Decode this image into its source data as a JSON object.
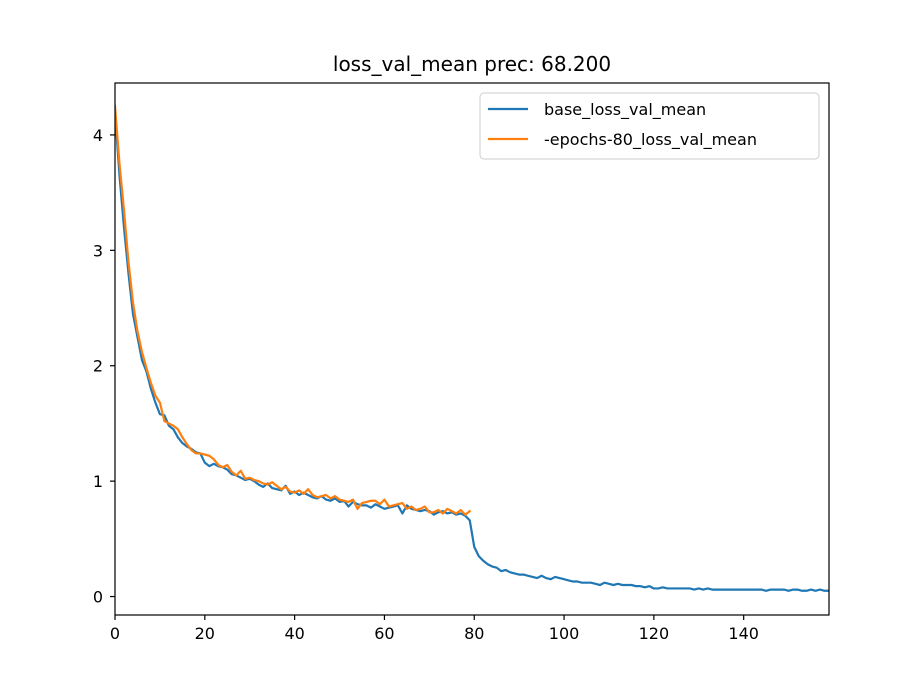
{
  "chart_data": {
    "type": "line",
    "title": "loss_val_mean prec: 68.200",
    "xlabel": "",
    "ylabel": "",
    "xlim": [
      0,
      159
    ],
    "ylim": [
      -0.16,
      4.45
    ],
    "x_ticks": [
      0,
      20,
      40,
      60,
      80,
      100,
      120,
      140
    ],
    "y_ticks": [
      0,
      1,
      2,
      3,
      4
    ],
    "grid": false,
    "legend_position": "top-right",
    "series": [
      {
        "name": "base_loss_val_mean",
        "color": "#1f77b4",
        "x": [
          0,
          1,
          2,
          3,
          4,
          5,
          6,
          7,
          8,
          9,
          10,
          11,
          12,
          13,
          14,
          15,
          16,
          17,
          18,
          19,
          20,
          21,
          22,
          23,
          24,
          25,
          26,
          27,
          28,
          29,
          30,
          31,
          32,
          33,
          34,
          35,
          36,
          37,
          38,
          39,
          40,
          41,
          42,
          43,
          44,
          45,
          46,
          47,
          48,
          49,
          50,
          51,
          52,
          53,
          54,
          55,
          56,
          57,
          58,
          59,
          60,
          61,
          62,
          63,
          64,
          65,
          66,
          67,
          68,
          69,
          70,
          71,
          72,
          73,
          74,
          75,
          76,
          77,
          78,
          79,
          80,
          81,
          82,
          83,
          84,
          85,
          86,
          87,
          88,
          89,
          90,
          91,
          92,
          93,
          94,
          95,
          96,
          97,
          98,
          99,
          100,
          101,
          102,
          103,
          104,
          105,
          106,
          107,
          108,
          109,
          110,
          111,
          112,
          113,
          114,
          115,
          116,
          117,
          118,
          119,
          120,
          121,
          122,
          123,
          124,
          125,
          126,
          127,
          128,
          129,
          130,
          131,
          132,
          133,
          134,
          135,
          136,
          137,
          138,
          139,
          140,
          141,
          142,
          143,
          144,
          145,
          146,
          147,
          148,
          149,
          150,
          151,
          152,
          153,
          154,
          155,
          156,
          157,
          158,
          159
        ],
        "y": [
          4.2,
          3.65,
          3.2,
          2.8,
          2.45,
          2.25,
          2.05,
          1.95,
          1.8,
          1.68,
          1.58,
          1.57,
          1.48,
          1.45,
          1.38,
          1.33,
          1.3,
          1.28,
          1.25,
          1.24,
          1.16,
          1.13,
          1.15,
          1.13,
          1.12,
          1.1,
          1.06,
          1.05,
          1.03,
          1.01,
          1.02,
          1.0,
          0.97,
          0.95,
          0.98,
          0.94,
          0.93,
          0.92,
          0.96,
          0.89,
          0.91,
          0.88,
          0.9,
          0.88,
          0.86,
          0.85,
          0.87,
          0.84,
          0.83,
          0.85,
          0.82,
          0.83,
          0.78,
          0.82,
          0.8,
          0.79,
          0.79,
          0.77,
          0.8,
          0.78,
          0.76,
          0.77,
          0.78,
          0.79,
          0.72,
          0.79,
          0.76,
          0.75,
          0.74,
          0.75,
          0.74,
          0.71,
          0.73,
          0.74,
          0.72,
          0.73,
          0.71,
          0.72,
          0.7,
          0.66,
          0.43,
          0.35,
          0.31,
          0.28,
          0.26,
          0.25,
          0.22,
          0.23,
          0.21,
          0.2,
          0.19,
          0.19,
          0.18,
          0.17,
          0.16,
          0.18,
          0.16,
          0.15,
          0.17,
          0.16,
          0.15,
          0.14,
          0.13,
          0.13,
          0.12,
          0.12,
          0.12,
          0.11,
          0.1,
          0.12,
          0.11,
          0.1,
          0.11,
          0.1,
          0.1,
          0.1,
          0.09,
          0.09,
          0.08,
          0.09,
          0.07,
          0.07,
          0.08,
          0.07,
          0.07,
          0.07,
          0.07,
          0.07,
          0.07,
          0.06,
          0.07,
          0.06,
          0.07,
          0.06,
          0.06,
          0.06,
          0.06,
          0.06,
          0.06,
          0.06,
          0.06,
          0.06,
          0.06,
          0.06,
          0.06,
          0.05,
          0.06,
          0.06,
          0.06,
          0.06,
          0.05,
          0.06,
          0.06,
          0.05,
          0.05,
          0.06,
          0.05,
          0.06,
          0.05,
          0.05
        ]
      },
      {
        "name": "-epochs-80_loss_val_mean",
        "color": "#ff7f0e",
        "x": [
          0,
          1,
          2,
          3,
          4,
          5,
          6,
          7,
          8,
          9,
          10,
          11,
          12,
          13,
          14,
          15,
          16,
          17,
          18,
          19,
          20,
          21,
          22,
          23,
          24,
          25,
          26,
          27,
          28,
          29,
          30,
          31,
          32,
          33,
          34,
          35,
          36,
          37,
          38,
          39,
          40,
          41,
          42,
          43,
          44,
          45,
          46,
          47,
          48,
          49,
          50,
          51,
          52,
          53,
          54,
          55,
          56,
          57,
          58,
          59,
          60,
          61,
          62,
          63,
          64,
          65,
          66,
          67,
          68,
          69,
          70,
          71,
          72,
          73,
          74,
          75,
          76,
          77,
          78,
          79
        ],
        "y": [
          4.25,
          3.75,
          3.35,
          2.9,
          2.55,
          2.3,
          2.12,
          1.98,
          1.85,
          1.74,
          1.68,
          1.52,
          1.5,
          1.48,
          1.45,
          1.38,
          1.32,
          1.27,
          1.24,
          1.24,
          1.23,
          1.22,
          1.19,
          1.14,
          1.12,
          1.14,
          1.08,
          1.05,
          1.09,
          1.02,
          1.03,
          1.01,
          1.0,
          0.98,
          0.97,
          0.99,
          0.96,
          0.93,
          0.95,
          0.91,
          0.9,
          0.92,
          0.89,
          0.93,
          0.88,
          0.86,
          0.87,
          0.88,
          0.85,
          0.87,
          0.84,
          0.83,
          0.82,
          0.84,
          0.76,
          0.81,
          0.82,
          0.83,
          0.83,
          0.8,
          0.84,
          0.78,
          0.79,
          0.8,
          0.81,
          0.76,
          0.78,
          0.75,
          0.76,
          0.78,
          0.73,
          0.73,
          0.75,
          0.72,
          0.76,
          0.74,
          0.72,
          0.75,
          0.71,
          0.74
        ]
      }
    ]
  }
}
